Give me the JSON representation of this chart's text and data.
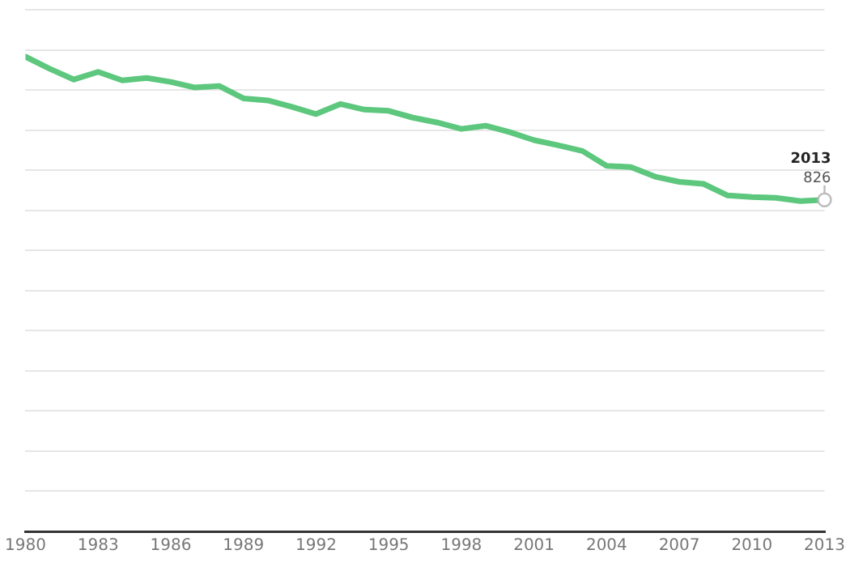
{
  "chart_data": {
    "type": "line",
    "x": [
      1980,
      1981,
      1982,
      1983,
      1984,
      1985,
      1986,
      1987,
      1988,
      1989,
      1990,
      1991,
      1992,
      1993,
      1994,
      1995,
      1996,
      1997,
      1998,
      1999,
      2000,
      2001,
      2002,
      2003,
      2004,
      2005,
      2006,
      2007,
      2008,
      2009,
      2010,
      2011,
      2012,
      2013
    ],
    "xlim": [
      1980,
      2013
    ],
    "xticks": [
      1980,
      1983,
      1986,
      1989,
      1992,
      1995,
      1998,
      2001,
      2004,
      2007,
      2010,
      2013
    ],
    "ylim": [
      0,
      1300
    ],
    "yticks": [
      {
        "value": 0,
        "label": null
      },
      {
        "value": 100,
        "label": null
      },
      {
        "value": 200,
        "label": null
      },
      {
        "value": 300,
        "label": null
      },
      {
        "value": 400,
        "label": null
      },
      {
        "value": 500,
        "label": null
      },
      {
        "value": 600,
        "label": null
      },
      {
        "value": 700,
        "label": null
      },
      {
        "value": 800,
        "label": null
      },
      {
        "value": 900,
        "label": null
      },
      {
        "value": 1000,
        "label": null
      },
      {
        "value": 1100,
        "label": null
      },
      {
        "value": 1200,
        "label": null
      },
      {
        "value": 1300,
        "label": null
      }
    ],
    "tick_labels": "x",
    "series": [
      {
        "color": "#5cc77d",
        "values": [
          1183,
          1153,
          1126,
          1145,
          1124,
          1130,
          1120,
          1106,
          1110,
          1079,
          1074,
          1058,
          1040,
          1065,
          1051,
          1048,
          1031,
          1019,
          1003,
          1011,
          995,
          975,
          962,
          948,
          911,
          908,
          884,
          871,
          866,
          837,
          833,
          831,
          823,
          826
        ],
        "value_labels": [
          null,
          null,
          null,
          null,
          null,
          null,
          null,
          null,
          null,
          null,
          null,
          null,
          null,
          null,
          null,
          null,
          null,
          null,
          null,
          null,
          null,
          null,
          null,
          null,
          null,
          null,
          null,
          null,
          null,
          null,
          null,
          null,
          null,
          "826"
        ]
      }
    ],
    "annotations": [
      "2013"
    ],
    "grid": "y",
    "legend": false,
    "marker": "none",
    "line_style": "solid"
  }
}
